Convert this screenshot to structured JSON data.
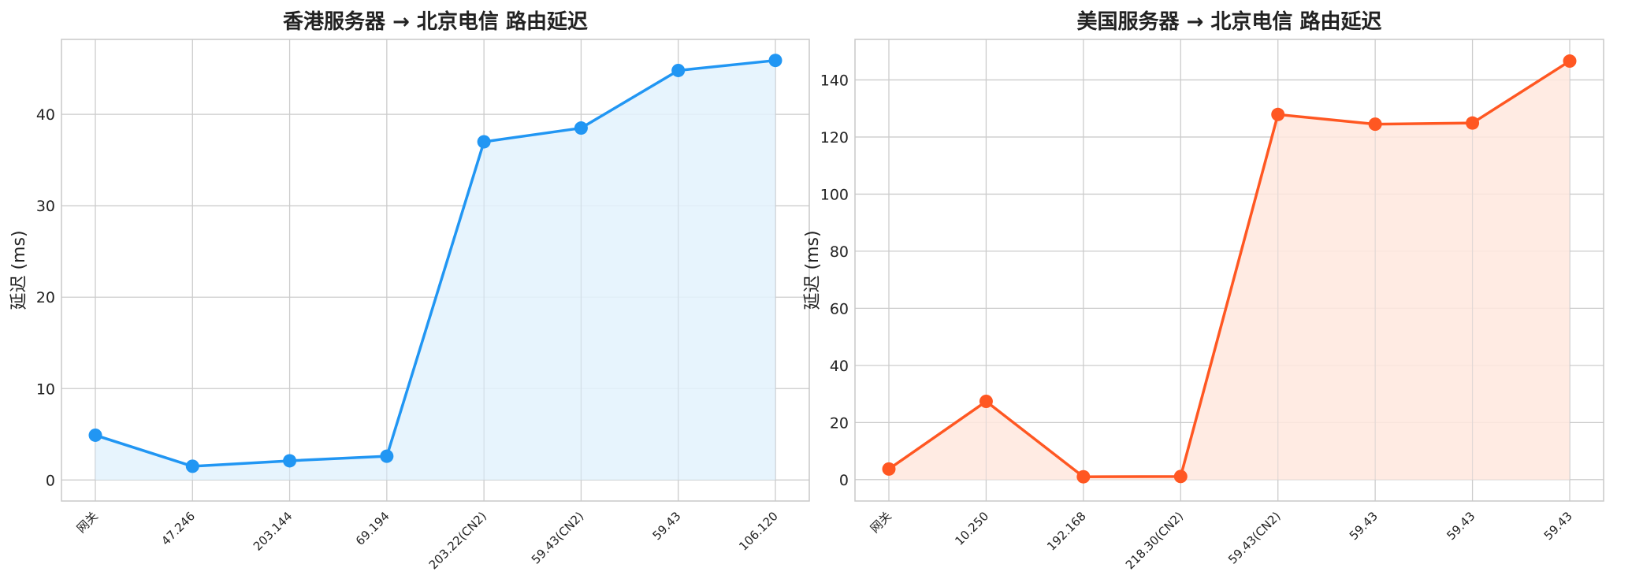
{
  "chart_data": [
    {
      "type": "area",
      "title": "香港服务器 → 北京电信 路由延迟",
      "ylabel": "延迟 (ms)",
      "xlabel": "",
      "categories": [
        "网关",
        "47.246",
        "203.144",
        "69.194",
        "203.22(CN2)",
        "59.43(CN2)",
        "59.43",
        "106.120"
      ],
      "values": [
        4.9,
        1.5,
        2.1,
        2.6,
        37.0,
        38.5,
        44.8,
        45.9
      ],
      "ylim": [
        -2.3,
        48.2
      ],
      "yticks": [
        "0",
        "10",
        "20",
        "30",
        "40"
      ],
      "line_color": "#2196F3",
      "fill_color": "#E3F2FD",
      "grid": true,
      "legend": "none"
    },
    {
      "type": "area",
      "title": "美国服务器 → 北京电信 路由延迟",
      "ylabel": "延迟 (ms)",
      "xlabel": "",
      "categories": [
        "网关",
        "10.250",
        "192.168",
        "218.30(CN2)",
        "59.43(CN2)",
        "59.43",
        "59.43",
        "59.43"
      ],
      "values": [
        3.7,
        27.4,
        1.0,
        1.1,
        127.9,
        124.5,
        124.9,
        146.6
      ],
      "ylim": [
        -7.5,
        154.2
      ],
      "yticks": [
        "0",
        "20",
        "40",
        "60",
        "80",
        "100",
        "120",
        "140"
      ],
      "line_color": "#FF5722",
      "fill_color": "#FFE8DE",
      "grid": true,
      "legend": "none"
    }
  ]
}
